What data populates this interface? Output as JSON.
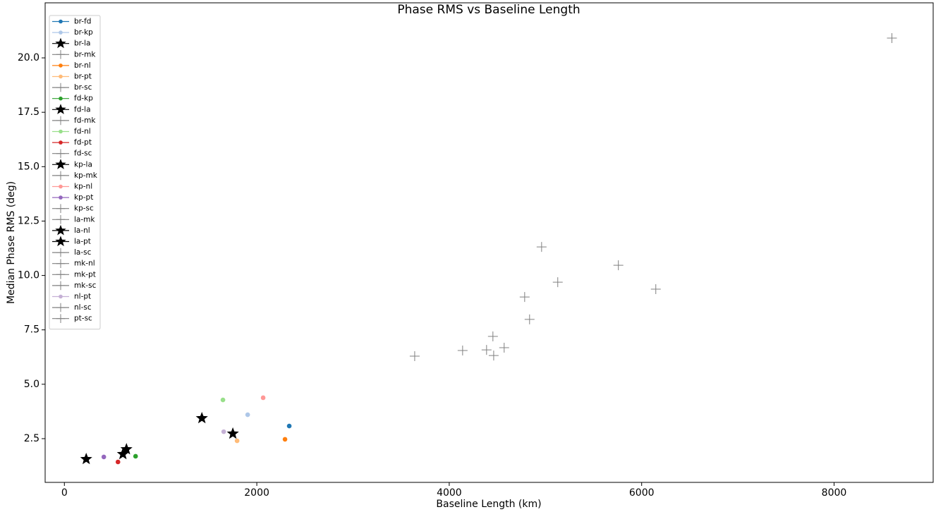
{
  "chart_data": {
    "type": "scatter",
    "title": "Phase RMS vs Baseline Length",
    "x_label": "Baseline Length (km)",
    "y_label": "Median Phase RMS (deg)",
    "xlim": [
      -200,
      9030
    ],
    "ylim": [
      0.49,
      22.53
    ],
    "xticks": [
      0,
      2000,
      4000,
      6000,
      8000
    ],
    "yticks": [
      2.5,
      {
        "value": 5,
        "label": "5.0"
      },
      7.5,
      {
        "value": 10,
        "label": "10.0"
      },
      12.5,
      {
        "value": 15,
        "label": "15.0"
      },
      17.5,
      {
        "value": 20,
        "label": "20.0"
      }
    ],
    "grid": false,
    "legend": "upper left",
    "series": [
      {
        "name": "br-fd",
        "color": "#1f77b4",
        "marker": "o",
        "x": [
          2337
        ],
        "values": [
          3.08
        ]
      },
      {
        "name": "br-kp",
        "color": "#aec7e8",
        "marker": "o",
        "x": [
          1905
        ],
        "values": [
          3.6
        ]
      },
      {
        "name": "br-la",
        "color": "#000000",
        "marker": "*",
        "x": [
          1751
        ],
        "values": [
          2.73
        ]
      },
      {
        "name": "br-mk",
        "color": "#808080",
        "marker": "+",
        "x": [
          4388
        ],
        "values": [
          6.58
        ]
      },
      {
        "name": "br-nl",
        "color": "#ff7f0e",
        "marker": "o",
        "x": [
          2293
        ],
        "values": [
          2.47
        ]
      },
      {
        "name": "br-pt",
        "color": "#ffbb78",
        "marker": "o",
        "x": [
          1795
        ],
        "values": [
          2.4
        ]
      },
      {
        "name": "br-sc",
        "color": "#808080",
        "marker": "+",
        "x": [
          5758
        ],
        "values": [
          10.47
        ]
      },
      {
        "name": "fd-kp",
        "color": "#2ca02c",
        "marker": "o",
        "x": [
          740
        ],
        "values": [
          1.69
        ]
      },
      {
        "name": "fd-la",
        "color": "#000000",
        "marker": "*",
        "x": [
          608
        ],
        "values": [
          1.79
        ]
      },
      {
        "name": "fd-mk",
        "color": "#808080",
        "marker": "+",
        "x": [
          4835
        ],
        "values": [
          7.98
        ]
      },
      {
        "name": "fd-nl",
        "color": "#98df8a",
        "marker": "o",
        "x": [
          1648
        ],
        "values": [
          4.28
        ]
      },
      {
        "name": "fd-pt",
        "color": "#d62728",
        "marker": "o",
        "x": [
          557
        ],
        "values": [
          1.43
        ]
      },
      {
        "name": "fd-sc",
        "color": "#808080",
        "marker": "+",
        "x": [
          4462
        ],
        "values": [
          6.32
        ]
      },
      {
        "name": "kp-la",
        "color": "#000000",
        "marker": "*",
        "x": [
          645
        ],
        "values": [
          2.01
        ]
      },
      {
        "name": "kp-mk",
        "color": "#808080",
        "marker": "+",
        "x": [
          4454
        ],
        "values": [
          7.2
        ]
      },
      {
        "name": "kp-nl",
        "color": "#ff9896",
        "marker": "o",
        "x": [
          2066
        ],
        "values": [
          4.38
        ]
      },
      {
        "name": "kp-pt",
        "color": "#9467bd",
        "marker": "o",
        "x": [
          410
        ],
        "values": [
          1.66
        ]
      },
      {
        "name": "kp-sc",
        "color": "#808080",
        "marker": "+",
        "x": [
          4960
        ],
        "values": [
          11.31
        ]
      },
      {
        "name": "la-mk",
        "color": "#808080",
        "marker": "+",
        "x": [
          4571
        ],
        "values": [
          6.68
        ]
      },
      {
        "name": "la-nl",
        "color": "#000000",
        "marker": "*",
        "x": [
          1429
        ],
        "values": [
          3.44
        ]
      },
      {
        "name": "la-pt",
        "color": "#000000",
        "marker": "*",
        "x": [
          227
        ],
        "values": [
          1.56
        ]
      },
      {
        "name": "la-sc",
        "color": "#808080",
        "marker": "+",
        "x": [
          4139
        ],
        "values": [
          6.55
        ]
      },
      {
        "name": "mk-nl",
        "color": "#808080",
        "marker": "+",
        "x": [
          6147
        ],
        "values": [
          9.37
        ]
      },
      {
        "name": "mk-pt",
        "color": "#808080",
        "marker": "+",
        "x": [
          4784
        ],
        "values": [
          9.01
        ]
      },
      {
        "name": "mk-sc",
        "color": "#808080",
        "marker": "+",
        "x": [
          8601
        ],
        "values": [
          20.91
        ]
      },
      {
        "name": "nl-pt",
        "color": "#c5b0d5",
        "marker": "o",
        "x": [
          1656
        ],
        "values": [
          2.82
        ]
      },
      {
        "name": "nl-sc",
        "color": "#808080",
        "marker": "+",
        "x": [
          3641
        ],
        "values": [
          6.29
        ]
      },
      {
        "name": "pt-sc",
        "color": "#808080",
        "marker": "+",
        "x": [
          5128
        ],
        "values": [
          9.69
        ]
      }
    ]
  }
}
